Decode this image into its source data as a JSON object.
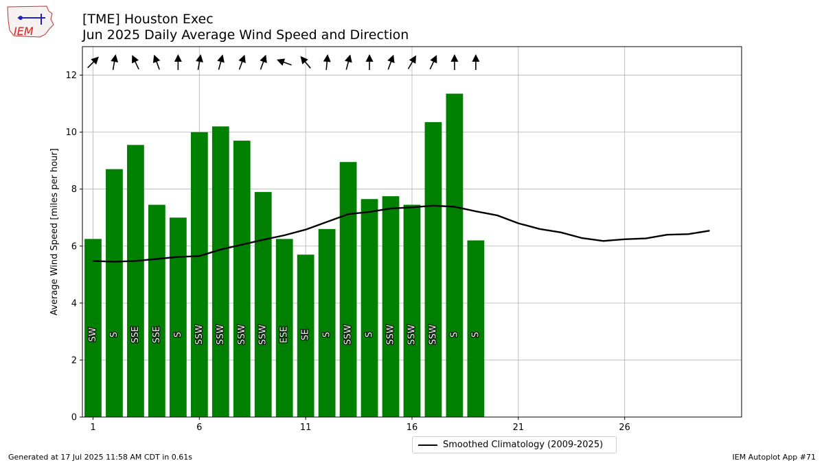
{
  "header": {
    "title_line1": "[TME] Houston Exec",
    "title_line2": "Jun 2025 Daily Average Wind Speed and Direction"
  },
  "footer": {
    "generated": "Generated at 17 Jul 2025 11:58 AM CDT in 0.61s",
    "app": "IEM Autoplot App #71"
  },
  "logo": {
    "text": "IEM"
  },
  "legend": {
    "climatology_label": "Smoothed Climatology (2009-2025)"
  },
  "colors": {
    "bar": "#008000",
    "climo_line": "#000000",
    "grid": "#b0b0b0"
  },
  "chart_data": {
    "type": "bar",
    "ylabel": "Average Wind Speed [miles per hour]",
    "xlabel": "",
    "xlim": [
      0.5,
      31.5
    ],
    "ylim": [
      0,
      13
    ],
    "xticks": [
      1,
      6,
      11,
      16,
      21,
      26
    ],
    "yticks": [
      0,
      2,
      4,
      6,
      8,
      10,
      12
    ],
    "grid": true,
    "days": [
      1,
      2,
      3,
      4,
      5,
      6,
      7,
      8,
      9,
      10,
      11,
      12,
      13,
      14,
      15,
      16,
      17,
      18,
      19
    ],
    "speeds": [
      6.25,
      8.7,
      9.55,
      7.45,
      7.0,
      10.0,
      10.2,
      9.7,
      7.9,
      6.25,
      5.7,
      6.6,
      8.95,
      7.65,
      7.75,
      7.45,
      10.35,
      11.35,
      6.2
    ],
    "directions": [
      "SW",
      "S",
      "SSE",
      "SSE",
      "S",
      "SSW",
      "SSW",
      "SSW",
      "SSW",
      "ESE",
      "SE",
      "S",
      "SSW",
      "S",
      "SSW",
      "SSW",
      "SSW",
      "S",
      "S"
    ],
    "arrow_headings_deg": [
      225,
      190,
      155,
      160,
      180,
      190,
      195,
      200,
      200,
      110,
      140,
      185,
      195,
      180,
      200,
      210,
      205,
      180,
      180
    ],
    "climatology": {
      "name": "Smoothed Climatology (2009-2025)",
      "x": [
        1,
        2,
        3,
        4,
        5,
        6,
        7,
        8,
        9,
        10,
        11,
        12,
        13,
        14,
        15,
        16,
        17,
        18,
        19,
        20,
        21,
        22,
        23,
        24,
        25,
        26,
        27,
        28,
        29,
        30
      ],
      "y": [
        5.48,
        5.45,
        5.48,
        5.55,
        5.62,
        5.65,
        5.88,
        6.05,
        6.22,
        6.38,
        6.58,
        6.85,
        7.12,
        7.2,
        7.32,
        7.36,
        7.42,
        7.38,
        7.22,
        7.08,
        6.8,
        6.6,
        6.48,
        6.28,
        6.18,
        6.24,
        6.27,
        6.4,
        6.42,
        6.54
      ]
    }
  }
}
